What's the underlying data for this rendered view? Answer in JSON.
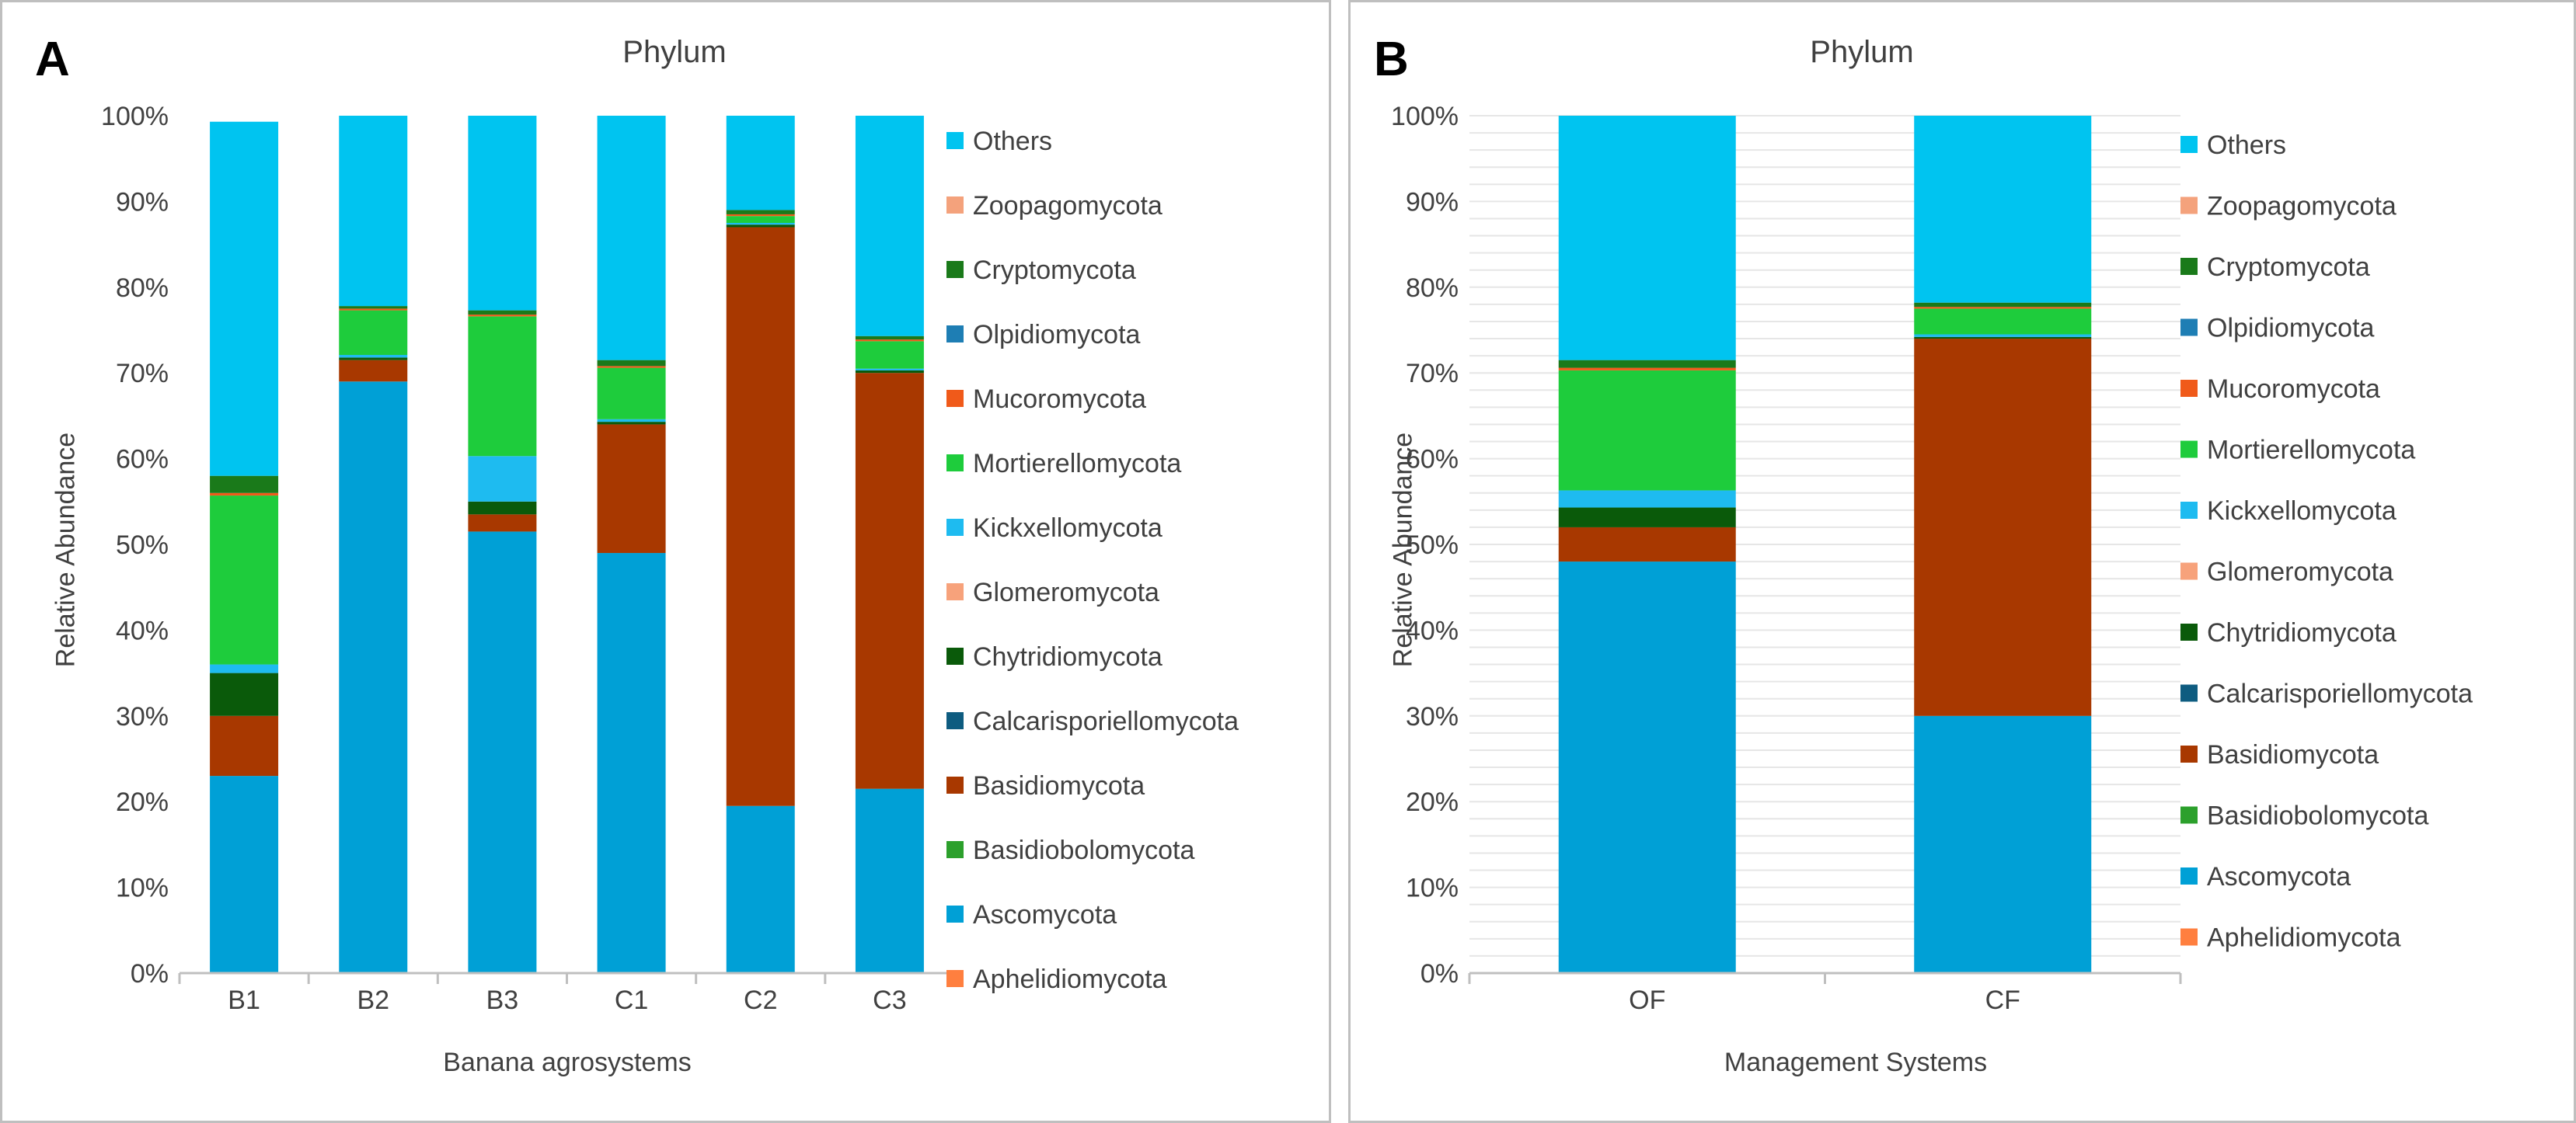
{
  "chart_data": [
    {
      "type": "bar",
      "stacked": true,
      "panel_letter": "A",
      "title": "Phylum",
      "xlabel": "Banana agrosystems",
      "ylabel": "Relative Abundance",
      "ylim": [
        0,
        100
      ],
      "yticks": [
        "0%",
        "10%",
        "20%",
        "30%",
        "40%",
        "50%",
        "60%",
        "70%",
        "80%",
        "90%",
        "100%"
      ],
      "categories": [
        "B1",
        "B2",
        "B3",
        "C1",
        "C2",
        "C3"
      ],
      "series": [
        {
          "name": "Aphelidiomycota",
          "color": "#ff7f3f",
          "values": [
            0,
            0,
            0,
            0,
            0,
            0
          ]
        },
        {
          "name": "Ascomycota",
          "color": "#00a0d6",
          "values": [
            23,
            69,
            51.5,
            49,
            19.5,
            21.5
          ]
        },
        {
          "name": "Basidiobolomycota",
          "color": "#2ca02c",
          "values": [
            0,
            0,
            0,
            0,
            0,
            0
          ]
        },
        {
          "name": "Basidiomycota",
          "color": "#a83800",
          "values": [
            7,
            2.5,
            2,
            15,
            67.5,
            48.5
          ]
        },
        {
          "name": "Calcarisporiellomycota",
          "color": "#0e5c80",
          "values": [
            0,
            0,
            0,
            0,
            0,
            0
          ]
        },
        {
          "name": "Chytridiomycota",
          "color": "#0a5a0a",
          "values": [
            5,
            0.3,
            1.5,
            0.3,
            0.3,
            0.3
          ]
        },
        {
          "name": "Glomeromycota",
          "color": "#f7a27b",
          "values": [
            0,
            0,
            0,
            0,
            0,
            0
          ]
        },
        {
          "name": "Kickxellomycota",
          "color": "#1ebbf0",
          "values": [
            1,
            0.3,
            5.3,
            0.3,
            0.2,
            0.2
          ]
        },
        {
          "name": "Mortierellomycota",
          "color": "#1ecc3c",
          "values": [
            19.7,
            5.2,
            16.3,
            6,
            0.8,
            3.2
          ]
        },
        {
          "name": "Mucoromycota",
          "color": "#f05a1a",
          "values": [
            0.3,
            0.2,
            0.2,
            0.2,
            0.2,
            0.2
          ]
        },
        {
          "name": "Olpidiomycota",
          "color": "#1e7eb4",
          "values": [
            0,
            0,
            0,
            0,
            0,
            0
          ]
        },
        {
          "name": "Cryptomycota",
          "color": "#1a7a1a",
          "values": [
            2,
            0.3,
            0.5,
            0.7,
            0.5,
            0.4
          ]
        },
        {
          "name": "Zoopagomycota",
          "color": "#f4a27c",
          "values": [
            0,
            0,
            0,
            0,
            0,
            0
          ]
        },
        {
          "name": "Others",
          "color": "#00c4f0",
          "values": [
            41.3,
            22.2,
            22.7,
            28.5,
            11,
            25.7
          ]
        }
      ],
      "legend": [
        "Others",
        "Zoopagomycota",
        "Cryptomycota",
        "Olpidiomycota",
        "Mucoromycota",
        "Mortierellomycota",
        "Kickxellomycota",
        "Glomeromycota",
        "Chytridiomycota",
        "Calcarisporiellomycota",
        "Basidiomycota",
        "Basidiobolomycota",
        "Ascomycota",
        "Aphelidiomycota"
      ],
      "legend_position": "right",
      "grid": false
    },
    {
      "type": "bar",
      "stacked": true,
      "panel_letter": "B",
      "title": "Phylum",
      "xlabel": "Management Systems",
      "ylabel": "Relative Abundance",
      "ylim": [
        0,
        100
      ],
      "yticks": [
        "0%",
        "10%",
        "20%",
        "30%",
        "40%",
        "50%",
        "60%",
        "70%",
        "80%",
        "90%",
        "100%"
      ],
      "categories": [
        "OF",
        "CF"
      ],
      "series": [
        {
          "name": "Aphelidiomycota",
          "color": "#ff7f3f",
          "values": [
            0,
            0
          ]
        },
        {
          "name": "Ascomycota",
          "color": "#00a0d6",
          "values": [
            48,
            30
          ]
        },
        {
          "name": "Basidiobolomycota",
          "color": "#2ca02c",
          "values": [
            0,
            0
          ]
        },
        {
          "name": "Basidiomycota",
          "color": "#a83800",
          "values": [
            4,
            44
          ]
        },
        {
          "name": "Calcarisporiellomycota",
          "color": "#0e5c80",
          "values": [
            0,
            0
          ]
        },
        {
          "name": "Chytridiomycota",
          "color": "#0a5a0a",
          "values": [
            2.3,
            0.2
          ]
        },
        {
          "name": "Glomeromycota",
          "color": "#f7a27b",
          "values": [
            0,
            0
          ]
        },
        {
          "name": "Kickxellomycota",
          "color": "#1ebbf0",
          "values": [
            2,
            0.3
          ]
        },
        {
          "name": "Mortierellomycota",
          "color": "#1ecc3c",
          "values": [
            14,
            3
          ]
        },
        {
          "name": "Mucoromycota",
          "color": "#f05a1a",
          "values": [
            0.3,
            0.2
          ]
        },
        {
          "name": "Olpidiomycota",
          "color": "#1e7eb4",
          "values": [
            0,
            0
          ]
        },
        {
          "name": "Cryptomycota",
          "color": "#1a7a1a",
          "values": [
            0.9,
            0.5
          ]
        },
        {
          "name": "Zoopagomycota",
          "color": "#f4a27c",
          "values": [
            0,
            0
          ]
        },
        {
          "name": "Others",
          "color": "#00c4f0",
          "values": [
            28.5,
            21.8
          ]
        }
      ],
      "legend": [
        "Others",
        "Zoopagomycota",
        "Cryptomycota",
        "Olpidiomycota",
        "Mucoromycota",
        "Mortierellomycota",
        "Kickxellomycota",
        "Glomeromycota",
        "Chytridiomycota",
        "Calcarisporiellomycota",
        "Basidiomycota",
        "Basidiobolomycota",
        "Ascomycota",
        "Aphelidiomycota"
      ],
      "legend_position": "right",
      "grid": true
    }
  ]
}
